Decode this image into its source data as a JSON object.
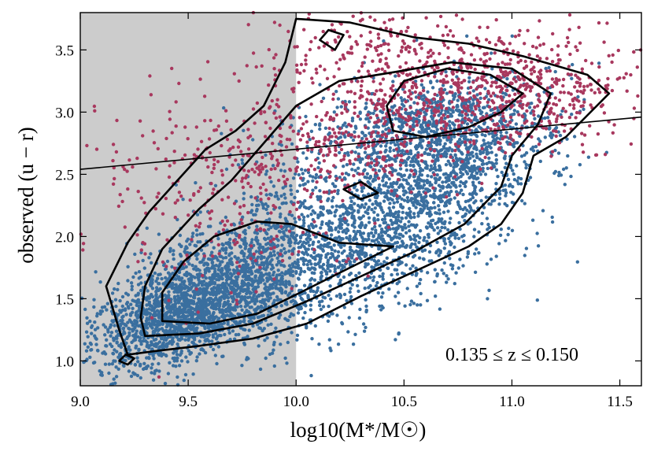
{
  "chart_data": {
    "type": "scatter",
    "title": "",
    "xlabel": "log10(M*/M☉)",
    "ylabel": "observed (u − r)",
    "xlim": [
      9.0,
      11.6
    ],
    "ylim": [
      0.8,
      3.8
    ],
    "xticks": [
      9.0,
      9.5,
      10.0,
      10.5,
      11.0,
      11.5
    ],
    "yticks": [
      1.0,
      1.5,
      2.0,
      2.5,
      3.0,
      3.5
    ],
    "xtick_labels": [
      "9.0",
      "9.5",
      "10.0",
      "10.5",
      "11.0",
      "11.5"
    ],
    "ytick_labels": [
      "1.0",
      "1.5",
      "2.0",
      "2.5",
      "3.0",
      "3.5"
    ],
    "grid": false,
    "legend": "none",
    "annotation": "0.135 ≤ z ≤ 0.150",
    "shaded_region": {
      "x": [
        9.0,
        10.0
      ],
      "color": "#cccccc"
    },
    "divider_line": {
      "x": [
        9.0,
        11.6
      ],
      "y": [
        2.54,
        2.96
      ]
    },
    "colors": {
      "blue": "#3a6f9f",
      "red": "#a8385e",
      "contour": "#000000",
      "shade": "#cccccc"
    },
    "series": [
      {
        "color": "#3a6f9f",
        "description_points": [
          [
            9.3,
            1.5
          ],
          [
            9.5,
            1.6
          ],
          [
            9.7,
            1.75
          ],
          [
            9.8,
            1.68
          ],
          [
            9.6,
            1.4
          ],
          [
            9.9,
            1.9
          ],
          [
            10.0,
            1.85
          ],
          [
            10.2,
            2.1
          ],
          [
            10.4,
            2.25
          ],
          [
            10.6,
            2.4
          ],
          [
            10.8,
            2.35
          ],
          [
            10.5,
            2.0
          ],
          [
            10.3,
            1.8
          ],
          [
            10.1,
            1.6
          ],
          [
            9.2,
            1.2
          ],
          [
            9.4,
            1.25
          ],
          [
            9.1,
            1.05
          ],
          [
            10.7,
            2.7
          ],
          [
            10.6,
            2.85
          ],
          [
            10.5,
            2.9
          ],
          [
            10.9,
            2.8
          ]
        ]
      },
      {
        "color": "#a8385e",
        "description_points": [
          [
            10.5,
            3.1
          ],
          [
            10.7,
            3.05
          ],
          [
            10.9,
            3.15
          ],
          [
            11.1,
            3.1
          ],
          [
            11.3,
            3.2
          ],
          [
            10.8,
            3.3
          ],
          [
            10.6,
            3.45
          ],
          [
            10.4,
            3.55
          ],
          [
            10.2,
            3.6
          ],
          [
            11.0,
            3.4
          ],
          [
            11.4,
            3.05
          ],
          [
            10.3,
            2.7
          ],
          [
            9.7,
            2.4
          ],
          [
            9.3,
            2.1
          ]
        ]
      }
    ],
    "contours": [
      [
        [
          9.22,
          1.05
        ],
        [
          9.35,
          1.08
        ],
        [
          9.55,
          1.12
        ],
        [
          9.8,
          1.18
        ],
        [
          10.05,
          1.3
        ],
        [
          10.3,
          1.52
        ],
        [
          10.55,
          1.72
        ],
        [
          10.8,
          1.92
        ],
        [
          10.95,
          2.1
        ],
        [
          11.05,
          2.35
        ],
        [
          11.1,
          2.65
        ],
        [
          11.25,
          2.8
        ],
        [
          11.45,
          3.15
        ],
        [
          11.35,
          3.3
        ],
        [
          11.05,
          3.45
        ],
        [
          10.8,
          3.55
        ],
        [
          10.55,
          3.6
        ],
        [
          10.25,
          3.72
        ],
        [
          10.0,
          3.75
        ],
        [
          9.95,
          3.4
        ],
        [
          9.85,
          3.05
        ],
        [
          9.72,
          2.85
        ],
        [
          9.58,
          2.7
        ],
        [
          9.45,
          2.45
        ],
        [
          9.32,
          2.2
        ],
        [
          9.22,
          1.95
        ],
        [
          9.12,
          1.6
        ],
        [
          9.18,
          1.25
        ],
        [
          9.22,
          1.05
        ]
      ],
      [
        [
          9.3,
          1.2
        ],
        [
          9.55,
          1.22
        ],
        [
          9.8,
          1.3
        ],
        [
          10.05,
          1.48
        ],
        [
          10.3,
          1.68
        ],
        [
          10.55,
          1.88
        ],
        [
          10.78,
          2.1
        ],
        [
          10.95,
          2.4
        ],
        [
          11.0,
          2.65
        ],
        [
          11.12,
          2.9
        ],
        [
          11.18,
          3.15
        ],
        [
          11.0,
          3.35
        ],
        [
          10.72,
          3.4
        ],
        [
          10.45,
          3.32
        ],
        [
          10.2,
          3.25
        ],
        [
          10.0,
          3.05
        ],
        [
          9.85,
          2.75
        ],
        [
          9.7,
          2.45
        ],
        [
          9.55,
          2.22
        ],
        [
          9.38,
          1.9
        ],
        [
          9.3,
          1.6
        ],
        [
          9.28,
          1.35
        ],
        [
          9.3,
          1.2
        ]
      ],
      [
        [
          9.38,
          1.32
        ],
        [
          9.6,
          1.3
        ],
        [
          9.82,
          1.38
        ],
        [
          10.02,
          1.55
        ],
        [
          10.25,
          1.75
        ],
        [
          10.45,
          1.92
        ],
        [
          10.2,
          1.95
        ],
        [
          9.98,
          2.1
        ],
        [
          9.82,
          2.12
        ],
        [
          9.62,
          2.0
        ],
        [
          9.48,
          1.8
        ],
        [
          9.38,
          1.55
        ],
        [
          9.38,
          1.32
        ]
      ],
      [
        [
          10.45,
          2.85
        ],
        [
          10.6,
          2.8
        ],
        [
          10.8,
          2.88
        ],
        [
          10.95,
          3.0
        ],
        [
          11.05,
          3.15
        ],
        [
          10.9,
          3.3
        ],
        [
          10.7,
          3.35
        ],
        [
          10.5,
          3.25
        ],
        [
          10.42,
          3.05
        ],
        [
          10.45,
          2.85
        ]
      ],
      [
        [
          10.22,
          2.38
        ],
        [
          10.3,
          2.3
        ],
        [
          10.38,
          2.35
        ],
        [
          10.3,
          2.44
        ],
        [
          10.22,
          2.38
        ]
      ],
      [
        [
          10.11,
          3.58
        ],
        [
          10.18,
          3.5
        ],
        [
          10.22,
          3.62
        ],
        [
          10.15,
          3.66
        ],
        [
          10.11,
          3.58
        ]
      ],
      [
        [
          9.18,
          1.0
        ],
        [
          9.22,
          0.97
        ],
        [
          9.25,
          1.02
        ],
        [
          9.21,
          1.05
        ],
        [
          9.18,
          1.0
        ]
      ]
    ]
  }
}
